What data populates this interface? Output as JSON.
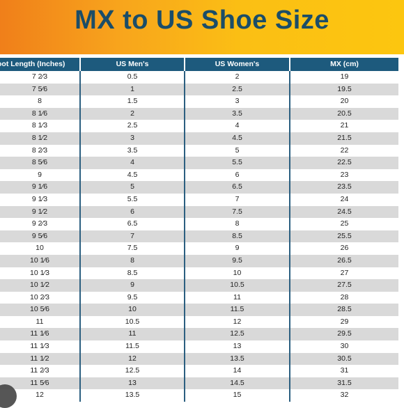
{
  "title": "MX to US Shoe Size",
  "headers": [
    "oot Length (Inches)",
    "US Men's",
    "US Women's",
    "MX (cm)"
  ],
  "rows": [
    [
      "7 2⁄3",
      "0.5",
      "2",
      "19"
    ],
    [
      "7 5⁄6",
      "1",
      "2.5",
      "19.5"
    ],
    [
      "8",
      "1.5",
      "3",
      "20"
    ],
    [
      "8 1⁄6",
      "2",
      "3.5",
      "20.5"
    ],
    [
      "8 1⁄3",
      "2.5",
      "4",
      "21"
    ],
    [
      "8 1⁄2",
      "3",
      "4.5",
      "21.5"
    ],
    [
      "8 2⁄3",
      "3.5",
      "5",
      "22"
    ],
    [
      "8 5⁄6",
      "4",
      "5.5",
      "22.5"
    ],
    [
      "9",
      "4.5",
      "6",
      "23"
    ],
    [
      "9 1⁄6",
      "5",
      "6.5",
      "23.5"
    ],
    [
      "9 1⁄3",
      "5.5",
      "7",
      "24"
    ],
    [
      "9 1⁄2",
      "6",
      "7.5",
      "24.5"
    ],
    [
      "9 2⁄3",
      "6.5",
      "8",
      "25"
    ],
    [
      "9 5⁄6",
      "7",
      "8.5",
      "25.5"
    ],
    [
      "10",
      "7.5",
      "9",
      "26"
    ],
    [
      "10 1⁄6",
      "8",
      "9.5",
      "26.5"
    ],
    [
      "10 1⁄3",
      "8.5",
      "10",
      "27"
    ],
    [
      "10 1⁄2",
      "9",
      "10.5",
      "27.5"
    ],
    [
      "10 2⁄3",
      "9.5",
      "11",
      "28"
    ],
    [
      "10 5⁄6",
      "10",
      "11.5",
      "28.5"
    ],
    [
      "11",
      "10.5",
      "12",
      "29"
    ],
    [
      "11 1⁄6",
      "11",
      "12.5",
      "29.5"
    ],
    [
      "11 1⁄3",
      "11.5",
      "13",
      "30"
    ],
    [
      "11 1⁄2",
      "12",
      "13.5",
      "30.5"
    ],
    [
      "11 2⁄3",
      "12.5",
      "14",
      "31"
    ],
    [
      "11 5⁄6",
      "13",
      "14.5",
      "31.5"
    ],
    [
      "12",
      "13.5",
      "15",
      "32"
    ]
  ]
}
